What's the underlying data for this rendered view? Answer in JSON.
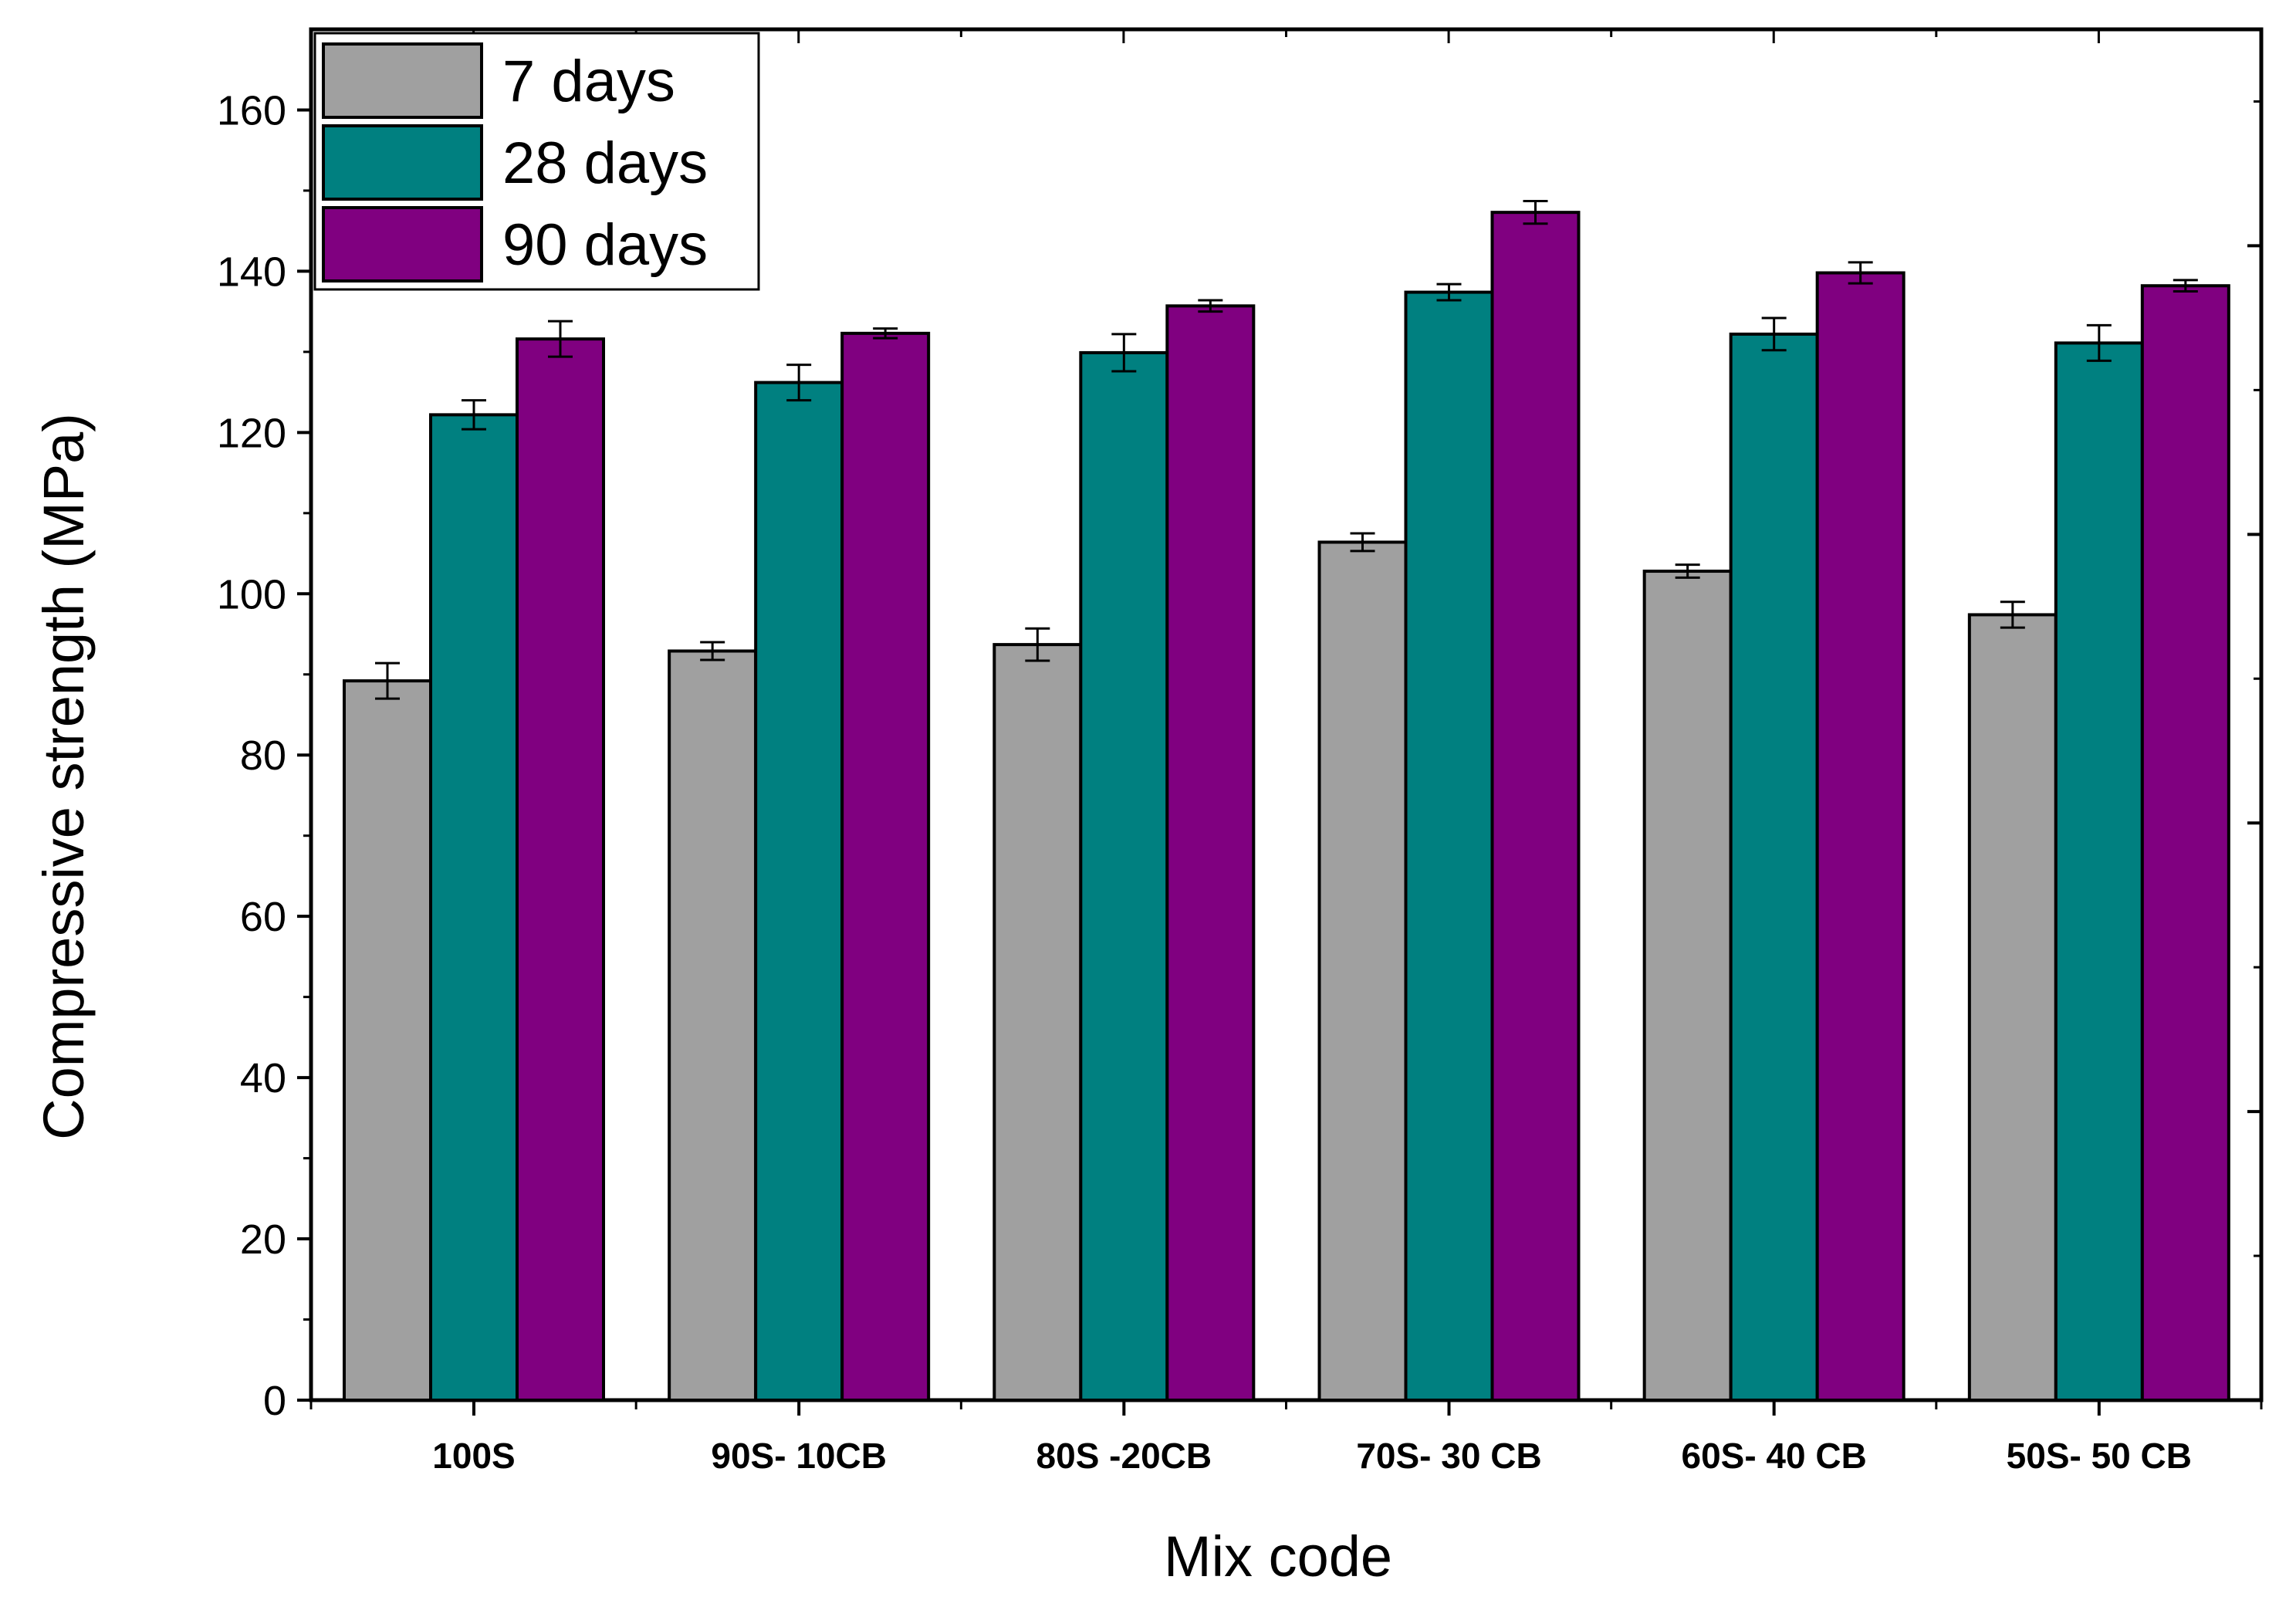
{
  "chart_data": {
    "type": "bar",
    "title": "",
    "xlabel": "Mix code",
    "ylabel": "Compressive strength (MPa)",
    "ylim": [
      0,
      170
    ],
    "yticks": [
      0,
      20,
      40,
      60,
      80,
      100,
      120,
      140,
      160
    ],
    "categories": [
      "100S",
      "90S- 10CB",
      "80S -20CB",
      "70S- 30 CB",
      "60S- 40 CB",
      "50S- 50 CB"
    ],
    "series": [
      {
        "name": "7 days",
        "color": "#a0a0a0",
        "values": [
          89.2,
          92.9,
          93.7,
          106.4,
          102.8,
          97.4
        ],
        "errors": [
          2.2,
          1.1,
          2.0,
          1.1,
          0.8,
          1.6
        ]
      },
      {
        "name": "28 days",
        "color": "#008080",
        "values": [
          122.2,
          126.2,
          129.9,
          137.4,
          132.2,
          131.1
        ],
        "errors": [
          1.8,
          2.2,
          2.3,
          1.0,
          2.0,
          2.2
        ]
      },
      {
        "name": "90 days",
        "color": "#800080",
        "values": [
          131.6,
          132.3,
          135.7,
          147.3,
          139.8,
          138.2
        ],
        "errors": [
          2.2,
          0.6,
          0.7,
          1.4,
          1.3,
          0.7
        ]
      }
    ],
    "legend_position": "top-left",
    "grid": false
  }
}
